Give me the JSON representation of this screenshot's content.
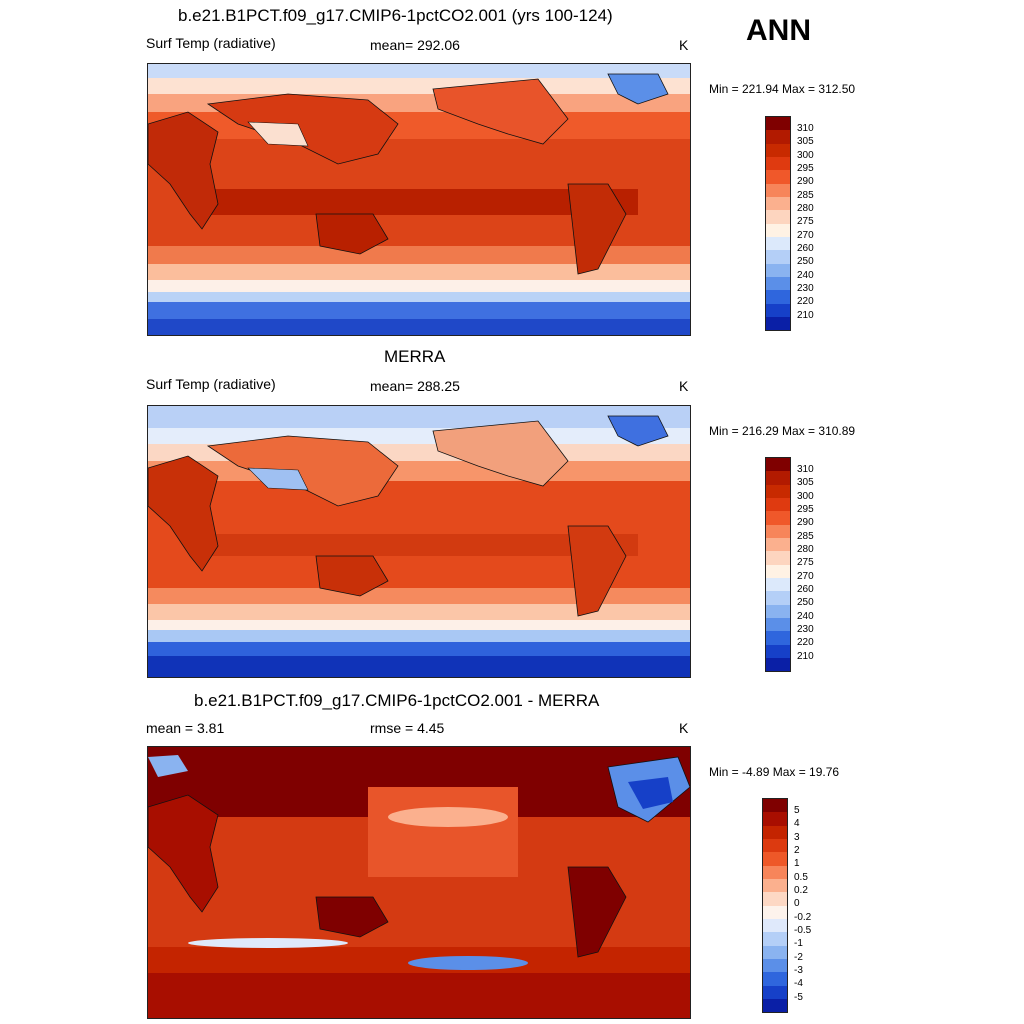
{
  "season": "ANN",
  "panels": [
    {
      "title": "b.e21.B1PCT.f09_g17.CMIP6-1pctCO2.001 (yrs 100-124)",
      "left_label": "Surf Temp (radiative)",
      "center_label": "mean= 292.06",
      "units": "K",
      "minmax": "Min = 221.94 Max = 312.50"
    },
    {
      "title": "MERRA",
      "left_label": "Surf Temp (radiative)",
      "center_label": "mean= 288.25",
      "units": "K",
      "minmax": "Min = 216.29 Max = 310.89"
    },
    {
      "title": "b.e21.B1PCT.f09_g17.CMIP6-1pctCO2.001 - MERRA",
      "left_label": "mean =   3.81",
      "center_label": "rmse =   4.45",
      "units": "K",
      "minmax": "Min =  -4.89 Max =  19.76"
    }
  ],
  "colorbars": {
    "absolute": {
      "labels": [
        "310",
        "305",
        "300",
        "295",
        "290",
        "285",
        "280",
        "275",
        "270",
        "260",
        "250",
        "240",
        "230",
        "220",
        "210"
      ],
      "colors": [
        "#7f0000",
        "#b21a00",
        "#c82a00",
        "#df3a10",
        "#f0582a",
        "#f7855a",
        "#fbb08e",
        "#fdd5bf",
        "#fff2e4",
        "#dce9fb",
        "#b4cff7",
        "#8ab3f0",
        "#5b8fe8",
        "#2f66dd",
        "#1640c8",
        "#0a1fa6"
      ]
    },
    "difference": {
      "labels": [
        "5",
        "4",
        "3",
        "2",
        "1",
        "0.5",
        "0.2",
        "0",
        "-0.2",
        "-0.5",
        "-1",
        "-2",
        "-3",
        "-4",
        "-5"
      ],
      "colors": [
        "#7f0000",
        "#a80e00",
        "#c42400",
        "#dc3a10",
        "#ee5828",
        "#f7855a",
        "#fbb08e",
        "#fdd8c4",
        "#fdf3ec",
        "#dfe9fb",
        "#b4cff7",
        "#8ab3f0",
        "#5b8fe8",
        "#2f66dd",
        "#1640c8",
        "#0a1fa6"
      ]
    }
  }
}
